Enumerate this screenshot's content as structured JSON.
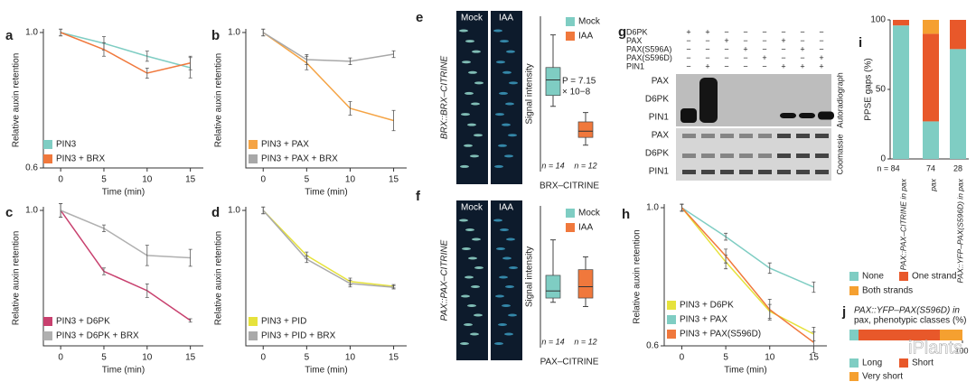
{
  "watermark": "iPlants",
  "chart_data": [
    {
      "letter": "a",
      "type": "line",
      "ylabel": "Relative auxin retention",
      "xlabel": "Time (min)",
      "x": [
        0,
        5,
        10,
        15
      ],
      "xlim": [
        -2,
        16.5
      ],
      "xticks": [
        0,
        5,
        10,
        15
      ],
      "ylim": [
        0.6,
        1
      ],
      "yticks": [
        {
          "value": 0.6,
          "label": "0.6"
        },
        {
          "value": 1,
          "label": "1.0"
        }
      ],
      "series": [
        {
          "name": "PIN3",
          "color": "#7fcdc3",
          "values": [
            1,
            0.968,
            0.93,
            0.896
          ],
          "errors": [
            0.01,
            0.02,
            0.015,
            0.03
          ]
        },
        {
          "name": "PIN3 + BRX",
          "color": "#f0783c",
          "values": [
            1,
            0.95,
            0.88,
            0.91
          ],
          "errors": [
            0.01,
            0.02,
            0.015,
            0.02
          ]
        }
      ]
    },
    {
      "letter": "b",
      "type": "line",
      "ylabel": "Relative auxin retention",
      "xlabel": "Time (min)",
      "x": [
        0,
        5,
        10,
        15
      ],
      "xlim": [
        -2,
        16.5
      ],
      "xticks": [
        0,
        5,
        10,
        15
      ],
      "ylim": [
        0.6,
        1
      ],
      "yticks": [
        {
          "value": 1,
          "label": "1.0"
        }
      ],
      "series": [
        {
          "name": "PIN3 + PAX",
          "color": "#f5a445",
          "values": [
            1,
            0.91,
            0.776,
            0.74
          ],
          "errors": [
            0.01,
            0.02,
            0.02,
            0.03
          ]
        },
        {
          "name": "PIN3 + PAX + BRX",
          "color": "#a8a8a8",
          "values": [
            1,
            0.92,
            0.915,
            0.936
          ],
          "errors": [
            0.01,
            0.015,
            0.01,
            0.01
          ]
        }
      ]
    },
    {
      "letter": "c",
      "type": "line",
      "ylabel": "Relative auxin retention",
      "xlabel": "Time (min)",
      "x": [
        0,
        5,
        10,
        15
      ],
      "xlim": [
        -2,
        16.5
      ],
      "xticks": [
        0,
        5,
        10,
        15
      ],
      "ylim": [
        0.6,
        1
      ],
      "yticks": [
        {
          "value": 1,
          "label": "1.0"
        }
      ],
      "series": [
        {
          "name": "PIN3 + D6PK",
          "color": "#c8406e",
          "values": [
            1,
            0.82,
            0.763,
            0.675
          ],
          "errors": [
            0.02,
            0.01,
            0.02,
            0.005
          ]
        },
        {
          "name": "PIN3 + D6PK + BRX",
          "color": "#b0b0b0",
          "values": [
            1,
            0.947,
            0.867,
            0.86
          ],
          "errors": [
            0.02,
            0.01,
            0.03,
            0.025
          ]
        }
      ]
    },
    {
      "letter": "d",
      "type": "line",
      "ylabel": "Relative auxin retention",
      "xlabel": "Time (min)",
      "x": [
        0,
        5,
        10,
        15
      ],
      "xlim": [
        -2,
        16.5
      ],
      "xticks": [
        0,
        5,
        10,
        15
      ],
      "ylim": [
        0.6,
        1
      ],
      "yticks": [
        {
          "value": 1,
          "label": "1.0"
        }
      ],
      "series": [
        {
          "name": "PIN3 + PID",
          "color": "#e6e23c",
          "values": [
            1,
            0.867,
            0.79,
            0.776
          ],
          "errors": [
            0.01,
            0.01,
            0.01,
            0.005
          ]
        },
        {
          "name": "PIN3 + PID + BRX",
          "color": "#aaaaaa",
          "values": [
            1,
            0.856,
            0.784,
            0.773
          ],
          "errors": [
            0.01,
            0.01,
            0.01,
            0.005
          ]
        }
      ]
    },
    {
      "letter": "e",
      "type": "box",
      "ylabel": "Signal intensity",
      "xlabel": "BRX–CITRINE",
      "ylim": [
        0,
        1
      ],
      "image_labels": [
        "Mock",
        "IAA"
      ],
      "image_title": "BRX::BRX–CITRINE",
      "annotation": [
        "P = 7.15",
        "× 10−8"
      ],
      "n_labels": [
        "n = 14",
        "n = 12"
      ],
      "series": [
        {
          "name": "Mock",
          "color": "#7fcdc3",
          "min": 0.42,
          "q1": 0.49,
          "median": 0.59,
          "q3": 0.67,
          "max": 0.88
        },
        {
          "name": "IAA",
          "color": "#f0783c",
          "min": 0.17,
          "q1": 0.22,
          "median": 0.26,
          "q3": 0.32,
          "max": 0.38
        }
      ]
    },
    {
      "letter": "f",
      "type": "box",
      "ylabel": "Signal intensity",
      "xlabel": "PAX–CITRINE",
      "ylim": [
        0,
        1
      ],
      "image_labels": [
        "Mock",
        "IAA"
      ],
      "image_title": "PAX::PAX–CITRINE",
      "n_labels": [
        "n = 14",
        "n = 12"
      ],
      "series": [
        {
          "name": "Mock",
          "color": "#7fcdc3",
          "min": 0.32,
          "q1": 0.35,
          "median": 0.4,
          "q3": 0.51,
          "max": 0.76
        },
        {
          "name": "IAA",
          "color": "#f0783c",
          "min": 0.29,
          "q1": 0.35,
          "median": 0.43,
          "q3": 0.55,
          "max": 0.64
        }
      ]
    },
    {
      "letter": "g",
      "type": "blot",
      "rows": [
        {
          "label": "D6PK",
          "signs": [
            "+",
            "+",
            "−",
            "−",
            "−",
            "−",
            "−",
            "−"
          ]
        },
        {
          "label": "PAX",
          "signs": [
            "−",
            "−",
            "+",
            "−",
            "−",
            "+",
            "−",
            "−"
          ]
        },
        {
          "label": "PAX(S596A)",
          "signs": [
            "−",
            "−",
            "−",
            "+",
            "−",
            "−",
            "+",
            "−"
          ]
        },
        {
          "label": "PAX(S596D)",
          "signs": [
            "−",
            "−",
            "−",
            "−",
            "+",
            "−",
            "−",
            "+"
          ]
        },
        {
          "label": "PIN1",
          "signs": [
            "−",
            "+",
            "−",
            "−",
            "−",
            "+",
            "+",
            "+"
          ]
        }
      ],
      "band_labels": [
        "PAX",
        "D6PK",
        "PIN1",
        "PAX",
        "D6PK",
        "PIN1"
      ],
      "panel_labels": [
        "Autoradiograph",
        "Coomassie"
      ]
    },
    {
      "letter": "h",
      "type": "line",
      "ylabel": "Relative auxin retention",
      "xlabel": "Time (min)",
      "x": [
        0,
        5,
        10,
        15
      ],
      "xlim": [
        -2,
        16.5
      ],
      "xticks": [
        0,
        5,
        10,
        15
      ],
      "ylim": [
        0.6,
        1
      ],
      "yticks": [
        {
          "value": 0.6,
          "label": "0.6"
        },
        {
          "value": 1,
          "label": "1.0"
        }
      ],
      "series": [
        {
          "name": "PIN3 + D6PK",
          "color": "#e6e23c",
          "values": [
            1,
            0.843,
            0.7,
            0.634
          ],
          "errors": [
            0.01,
            0.02,
            0.02,
            0.02
          ]
        },
        {
          "name": "PIN3 + PAX",
          "color": "#7fcdc3",
          "values": [
            1,
            0.916,
            0.825,
            0.77
          ],
          "errors": [
            0.01,
            0.01,
            0.015,
            0.015
          ]
        },
        {
          "name": "PIN3 + PAX(S596D)",
          "color": "#f0783c",
          "values": [
            1,
            0.86,
            0.705,
            0.61
          ],
          "errors": [
            0.01,
            0.02,
            0.03,
            0.03
          ]
        }
      ]
    },
    {
      "letter": "i",
      "type": "stacked_bar",
      "ylabel": "PPSE gaps (%)",
      "categories": [
        "PAX::PAX–CITRINE in pax",
        "pax",
        "PAX::YFP–PAX(S596D) in pax"
      ],
      "n_labels": [
        "n = 84",
        "74",
        "28"
      ],
      "ylim": [
        0,
        100
      ],
      "yticks": [
        0,
        50,
        100
      ],
      "series": [
        {
          "name": "None",
          "color": "#7fcdc3",
          "values": [
            96,
            27,
            79
          ]
        },
        {
          "name": "One strand",
          "color": "#e8582a",
          "values": [
            4,
            63,
            21
          ]
        },
        {
          "name": "Both strands",
          "color": "#f5a030",
          "values": [
            0,
            10,
            0
          ]
        }
      ]
    },
    {
      "letter": "j",
      "type": "hbar_stacked",
      "title": [
        "PAX::YFP–PAX(S596D) in",
        "pax, phenotypic classes (%)"
      ],
      "xlim": [
        0,
        100
      ],
      "xticks": [
        100
      ],
      "series": [
        {
          "name": "Long",
          "color": "#7fcdc3",
          "values": [
            8
          ]
        },
        {
          "name": "Short",
          "color": "#e8582a",
          "values": [
            72
          ]
        },
        {
          "name": "Very short",
          "color": "#f5a030",
          "values": [
            20
          ]
        }
      ]
    }
  ]
}
